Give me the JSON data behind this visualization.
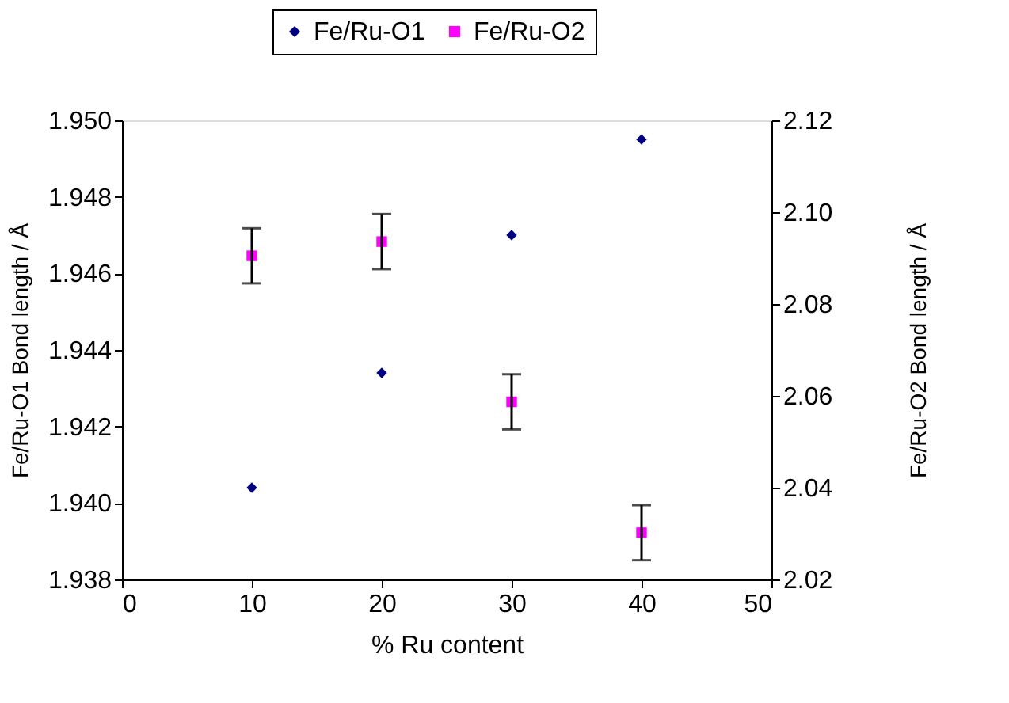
{
  "chart_data": {
    "type": "scatter",
    "xlabel": "% Ru content",
    "ylabel": "Fe/Ru-O1 Bond length / Å",
    "y2label": "Fe/Ru-O2 Bond length / Å",
    "x": [
      10,
      20,
      30,
      40
    ],
    "series": [
      {
        "name": "Fe/Ru-O1",
        "color": "#000080",
        "marker": "diamond",
        "values": [
          1.9404,
          1.9434,
          1.947,
          1.9495
        ]
      },
      {
        "name": "Fe/Ru-O2",
        "color": "#ff00ff",
        "marker": "square",
        "axis": "y2",
        "values": [
          2.0905,
          2.0936,
          2.0587,
          2.0302
        ],
        "errors": [
          0.006,
          0.006,
          0.006,
          0.006
        ]
      }
    ],
    "xlim": [
      0,
      50
    ],
    "xticks": [
      0,
      10,
      20,
      30,
      40,
      50
    ],
    "ylim": [
      1.938,
      1.95
    ],
    "yticks": [
      1.938,
      {
        "value": 1.94,
        "label": "1.940"
      },
      1.942,
      1.944,
      1.946,
      1.948,
      {
        "value": 1.95,
        "label": "1.950"
      }
    ],
    "y2lim": [
      2.02,
      2.12
    ],
    "y2ticks": [
      2.02,
      2.04,
      2.06,
      2.08,
      {
        "value": 2.1,
        "label": "2.10"
      },
      2.12
    ],
    "grid": false,
    "legend": "top"
  }
}
